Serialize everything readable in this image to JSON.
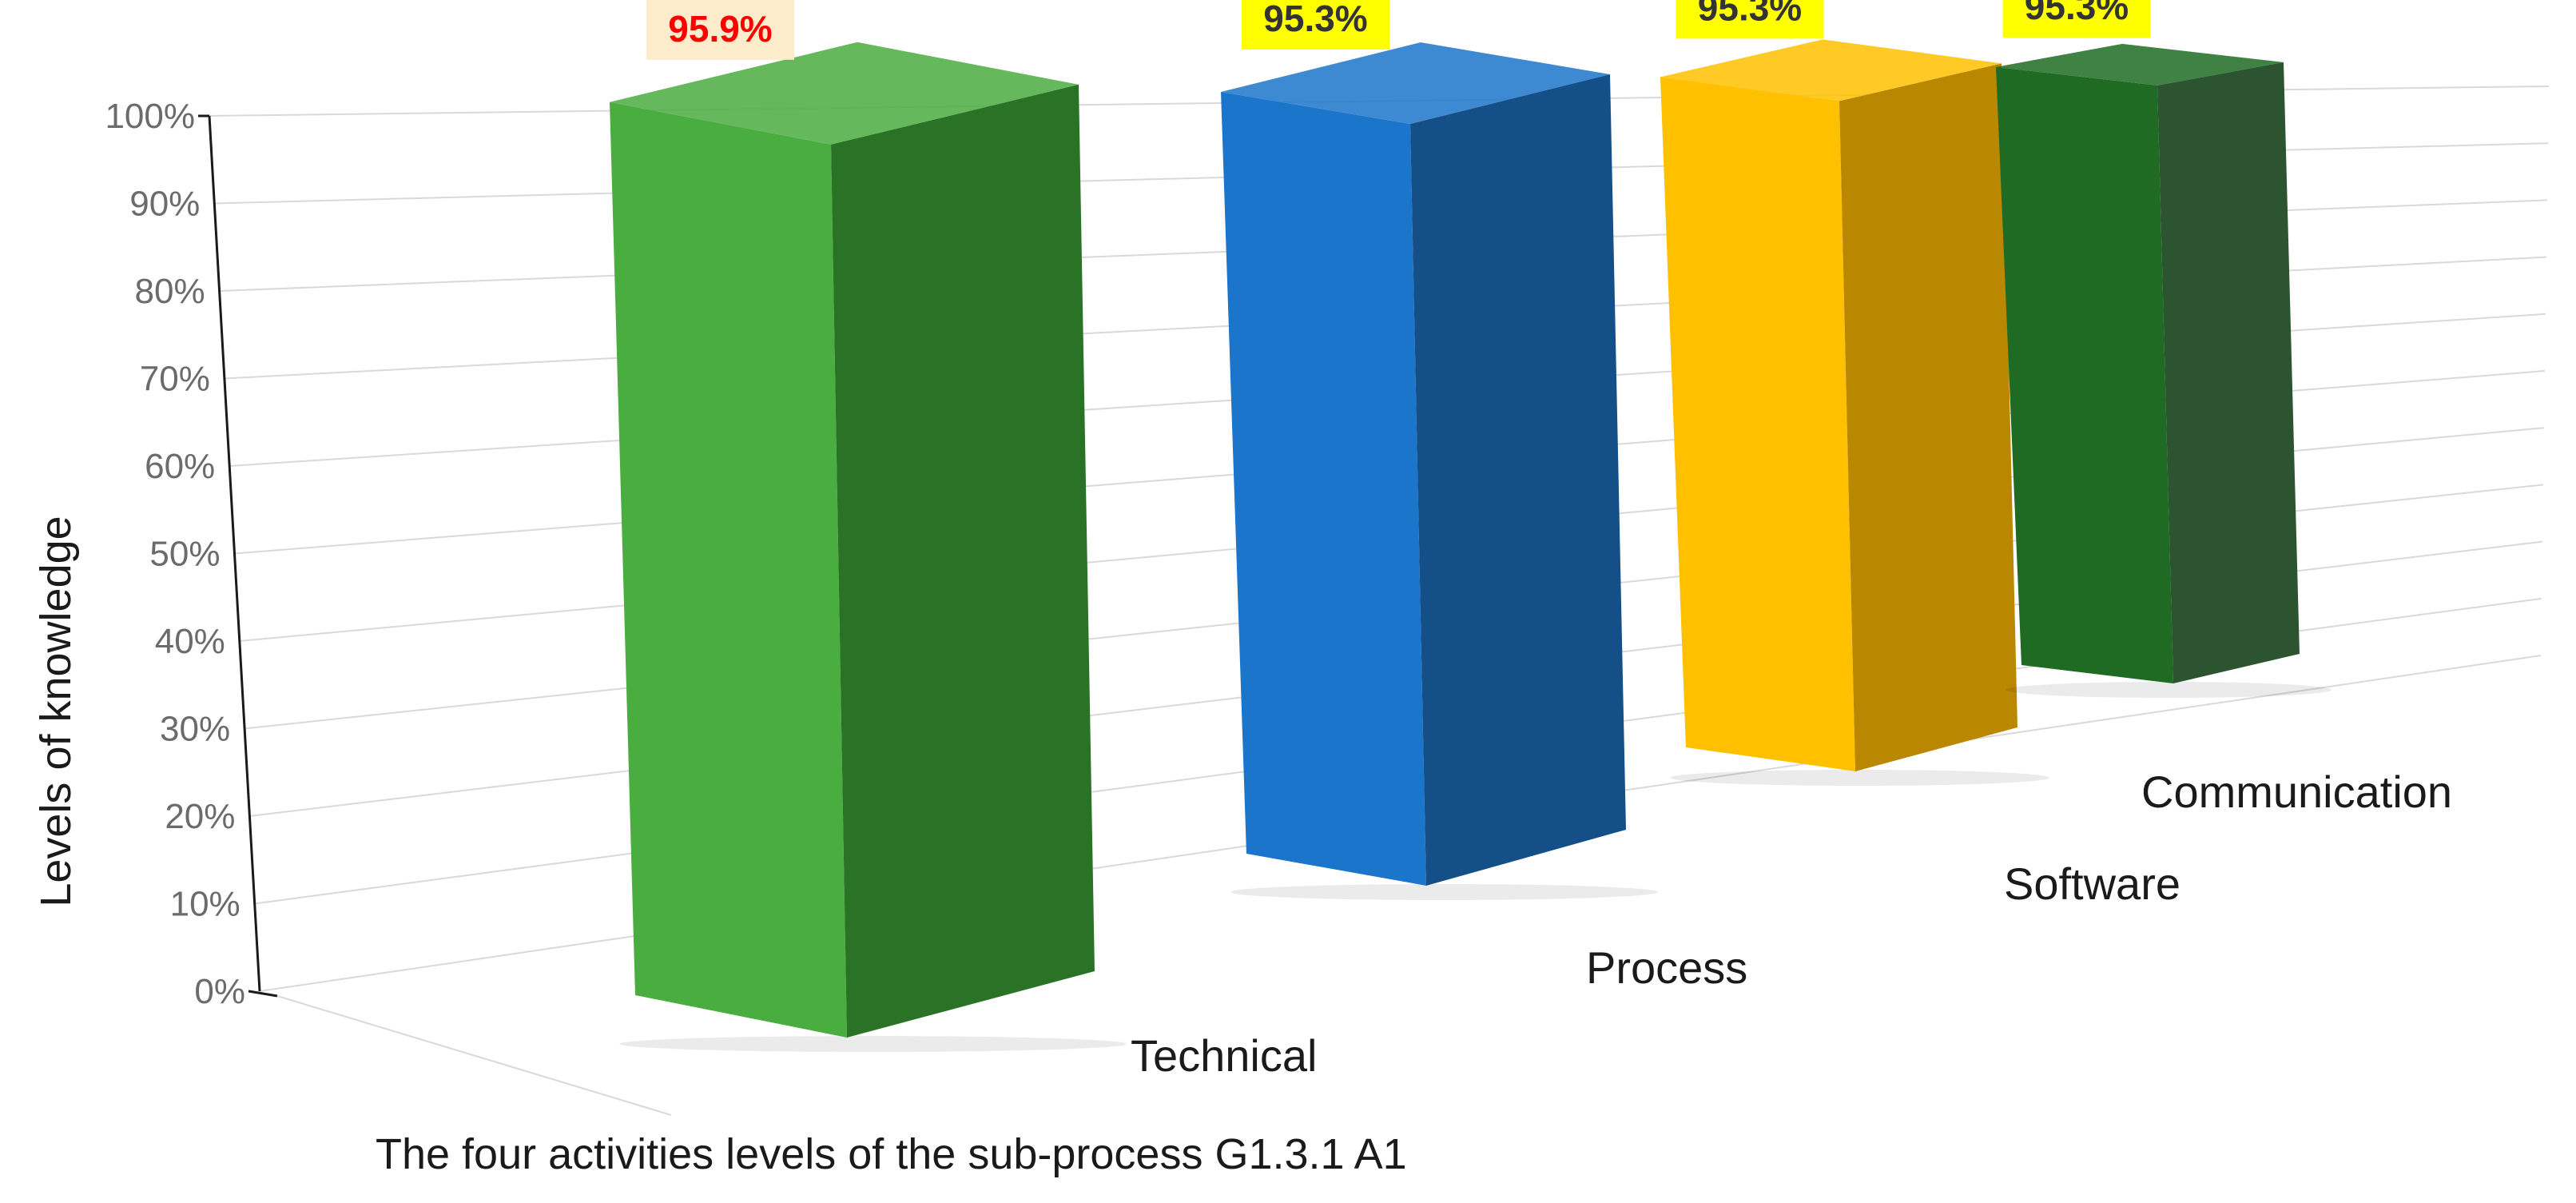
{
  "chart_data": {
    "type": "bar",
    "style": "3d-column",
    "categories": [
      "Technical",
      "Process",
      "Software",
      "Communication"
    ],
    "values": [
      95.9,
      95.3,
      95.3,
      95.3
    ],
    "data_labels": [
      "95.9%",
      "95.3%",
      "95.3%",
      "95.3%"
    ],
    "ylabel": "Levels of knowledge",
    "xlabel": "The four activities levels of the sub-process G1.3.1 A1",
    "ylim": [
      0,
      100
    ],
    "yticks": [
      "0%",
      "10%",
      "20%",
      "30%",
      "40%",
      "50%",
      "60%",
      "70%",
      "80%",
      "90%",
      "100%"
    ],
    "grid": true,
    "legend": "none",
    "colors": {
      "bar_front": [
        "#4aad3f",
        "#1b75cb",
        "#ffc000",
        "#1f6b23"
      ],
      "bar_side": [
        "#2a7226",
        "#154f87",
        "#b98800",
        "#2c5430"
      ],
      "label_bg": [
        "#fdeccb",
        "#ffff00",
        "#ffff00",
        "#ffff00"
      ],
      "label_text": [
        "#ff0000",
        "#333333",
        "#333333",
        "#333333"
      ]
    }
  }
}
